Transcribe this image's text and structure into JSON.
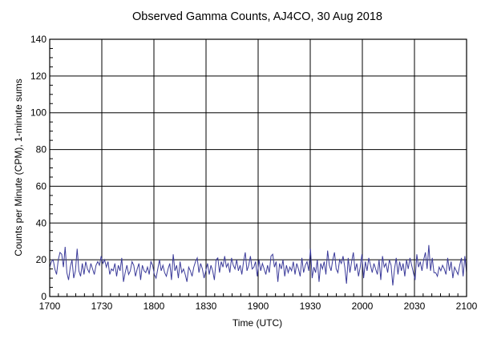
{
  "chart_data": {
    "type": "line",
    "title": "Observed Gamma Counts, AJ4CO, 30 Aug 2018",
    "xlabel": "Time (UTC)",
    "ylabel": "Counts per Minute (CPM), 1-minute sums",
    "x_tick_labels": [
      "1700",
      "1730",
      "1800",
      "1830",
      "1900",
      "1930",
      "2000",
      "2030",
      "2100"
    ],
    "y_tick_labels": [
      "0",
      "20",
      "40",
      "60",
      "80",
      "100",
      "120",
      "140"
    ],
    "xlim_minutes_since_1700": [
      0,
      240
    ],
    "ylim": [
      0,
      140
    ],
    "grid": true,
    "line_color": "#3b3b9a",
    "series": [
      {
        "values": [
          16,
          19,
          20,
          15,
          12,
          20,
          24,
          23,
          16,
          27,
          13,
          9,
          16,
          20,
          10,
          14,
          26,
          14,
          11,
          18,
          12,
          19,
          15,
          13,
          18,
          15,
          12,
          17,
          19,
          17,
          22,
          18,
          20,
          16,
          19,
          12,
          15,
          14,
          18,
          11,
          17,
          14,
          21,
          8,
          13,
          17,
          12,
          14,
          19,
          17,
          11,
          15,
          18,
          9,
          17,
          14,
          13,
          16,
          12,
          19,
          17,
          12,
          10,
          15,
          20,
          14,
          17,
          13,
          11,
          15,
          18,
          9,
          23,
          14,
          17,
          10,
          19,
          13,
          15,
          12,
          8,
          16,
          14,
          11,
          16,
          19,
          21,
          13,
          18,
          15,
          10,
          14,
          18,
          12,
          17,
          14,
          9,
          20,
          21,
          13,
          19,
          16,
          22,
          16,
          18,
          13,
          21,
          17,
          15,
          20,
          14,
          17,
          12,
          19,
          24,
          14,
          17,
          22,
          15,
          16,
          19,
          11,
          20,
          14,
          18,
          15,
          12,
          17,
          13,
          22,
          23,
          16,
          19,
          8,
          18,
          15,
          20,
          11,
          17,
          13,
          16,
          14,
          19,
          12,
          18,
          15,
          11,
          21,
          13,
          17,
          19,
          14,
          26,
          10,
          16,
          13,
          20,
          8,
          18,
          15,
          19,
          12,
          25,
          17,
          14,
          20,
          24,
          15,
          13,
          20,
          18,
          22,
          16,
          7,
          21,
          13,
          19,
          24,
          14,
          18,
          11,
          16,
          23,
          10,
          19,
          14,
          21,
          17,
          13,
          18,
          15,
          12,
          20,
          9,
          22,
          16,
          18,
          13,
          20,
          17,
          6,
          15,
          21,
          12,
          19,
          14,
          18,
          11,
          20,
          15,
          21,
          17,
          13,
          9,
          23,
          16,
          19,
          14,
          20,
          24,
          15,
          28,
          14,
          21,
          13,
          13,
          11,
          16,
          14,
          17,
          15,
          12,
          21,
          14,
          19,
          10,
          16,
          14,
          12,
          17,
          21,
          11,
          22,
          13
        ]
      }
    ]
  }
}
